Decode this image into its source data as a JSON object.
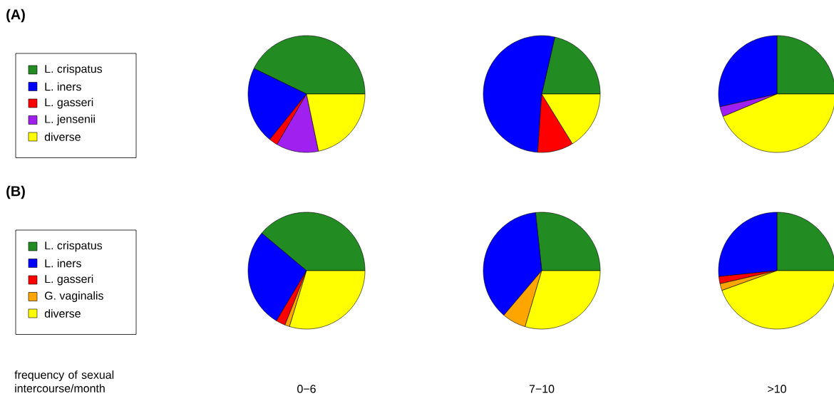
{
  "chart_data": [
    {
      "type": "pie",
      "title": "(A)",
      "legend": "left",
      "categories": [
        "L. crispatus",
        "L. iners",
        "L. gasseri",
        "L. jensenii",
        "diverse"
      ],
      "colors": [
        "#228b22",
        "#0000ff",
        "#ff0000",
        "#a020f0",
        "#ffff00"
      ],
      "series": [
        {
          "values": [
            42.8,
            21.4,
            2.4,
            11.7,
            21.7
          ]
        },
        {
          "values": [
            21.4,
            52.5,
            9.9,
            0,
            16.2
          ]
        },
        {
          "values": [
            25,
            28.5,
            0,
            2.8,
            43.7
          ]
        }
      ]
    },
    {
      "type": "pie",
      "title": "(B)",
      "legend": "left",
      "annotations": [
        "frequency of sexual intercourse/month"
      ],
      "categories": [
        "L. crispatus",
        "L. iners",
        "L. gasseri",
        "G. vaginalis",
        "diverse"
      ],
      "colors": [
        "#228b22",
        "#0000ff",
        "#ff0000",
        "#ffa500",
        "#ffff00"
      ],
      "series": [
        {
          "name": "0−6",
          "values": [
            38.9,
            27.5,
            2.6,
            1.3,
            29.7
          ]
        },
        {
          "name": "7−10",
          "values": [
            26.7,
            37.1,
            0,
            6.6,
            29.6
          ]
        },
        {
          "name": ">10",
          "values": [
            25,
            26.6,
            2,
            1.9,
            44.5
          ]
        }
      ]
    }
  ]
}
